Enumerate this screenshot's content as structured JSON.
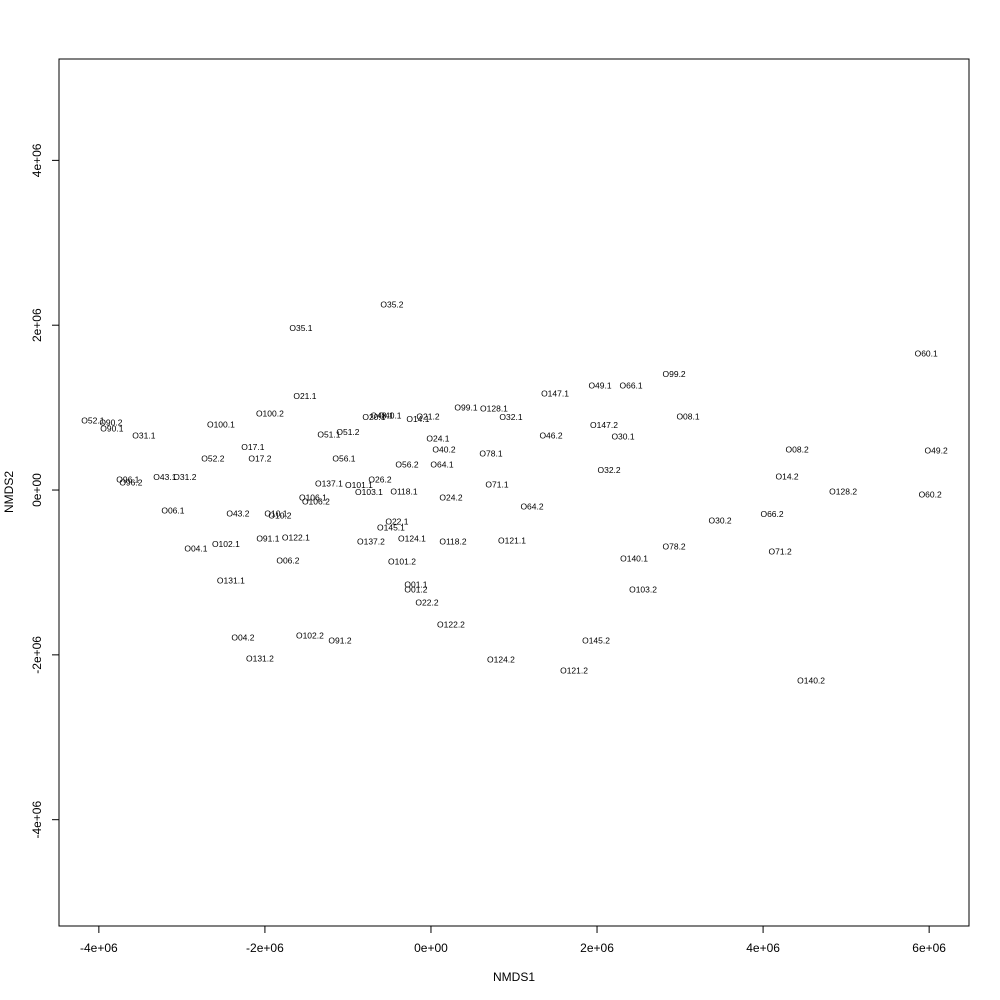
{
  "chart_data": {
    "type": "scatter",
    "xlabel": "NMDS1",
    "ylabel": "NMDS2",
    "xlim": [
      -4480000,
      6480000
    ],
    "ylim": [
      -5290000,
      5230000
    ],
    "xticks": [
      {
        "value": -4000000,
        "label": "-4e+06"
      },
      {
        "value": -2000000,
        "label": "-2e+06"
      },
      {
        "value": 0,
        "label": "0e+00"
      },
      {
        "value": 2000000,
        "label": "2e+06"
      },
      {
        "value": 4000000,
        "label": "4e+06"
      },
      {
        "value": 6000000,
        "label": "6e+06"
      }
    ],
    "yticks": [
      {
        "value": -4000000,
        "label": "-4e+06"
      },
      {
        "value": -2000000,
        "label": "-2e+06"
      },
      {
        "value": 0,
        "label": "0e+00"
      },
      {
        "value": 2000000,
        "label": "2e+06"
      },
      {
        "value": 4000000,
        "label": "4e+06"
      }
    ],
    "labels": [
      "O35.2",
      "O35.1",
      "O60.1",
      "O99.2",
      "O49.1",
      "O66.1",
      "O147.1",
      "O21.1",
      "O99.1",
      "O128.1",
      "O100.2",
      "O08.1",
      "O20.1",
      "O48.1",
      "O40.1",
      "O21.2",
      "O14.1",
      "O52.1",
      "O90.2",
      "O32.1",
      "O100.1",
      "O147.2",
      "O90.1",
      "O31.1",
      "O51.1",
      "O51.2",
      "O46.2",
      "O30.1",
      "O24.1",
      "O17.1",
      "O40.2",
      "O08.2",
      "O49.2",
      "O78.1",
      "O52.2",
      "O17.2",
      "O56.1",
      "O64.1",
      "O56.2",
      "O32.2",
      "O14.2",
      "O26.2",
      "O96.1",
      "O43.1",
      "O31.2",
      "O96.2",
      "O137.1",
      "O101.1",
      "O71.1",
      "O128.2",
      "O103.1",
      "O118.1",
      "O60.2",
      "O106.1",
      "O24.2",
      "O106.2",
      "O64.2",
      "O06.1",
      "O43.2",
      "O10.1",
      "O10.2",
      "O66.2",
      "O22.1",
      "O30.2",
      "O145.1",
      "O91.1",
      "O122.1",
      "O124.1",
      "O121.1",
      "O118.2",
      "O137.2",
      "O102.1",
      "O04.1",
      "O78.2",
      "O71.2",
      "O140.1",
      "O06.2",
      "O101.2",
      "O131.1",
      "O01.1",
      "O01.2",
      "O103.2",
      "O22.2",
      "O122.2",
      "O102.2",
      "O04.2",
      "O91.2",
      "O145.2",
      "O131.2",
      "O124.2",
      "O121.2",
      "O140.2"
    ],
    "x": [
      -470000,
      -1566000,
      5964000,
      2928000,
      2036000,
      2410000,
      1494000,
      -1518000,
      422000,
      759000,
      -1940000,
      3096000,
      -687000,
      -590000,
      -494000,
      -36000,
      -157000,
      -4072000,
      -3855000,
      964000,
      -2530000,
      2084000,
      -3843000,
      -3458000,
      -1229000,
      -1000000,
      1446000,
      2313000,
      84000,
      -2145000,
      157000,
      4410000,
      6084000,
      723000,
      -2627000,
      -2060000,
      -1048000,
      133000,
      -289000,
      2145000,
      4289000,
      -614000,
      -3651000,
      -3205000,
      -2964000,
      -3614000,
      -1229000,
      -867000,
      795000,
      4964000,
      -747000,
      -325000,
      6012000,
      -1422000,
      241000,
      -1386000,
      1217000,
      -3108000,
      -2325000,
      -1867000,
      -1819000,
      4108000,
      -410000,
      3482000,
      -482000,
      -1964000,
      -1627000,
      -229000,
      976000,
      265000,
      -723000,
      -2470000,
      -2831000,
      2928000,
      4205000,
      2446000,
      -1723000,
      -349000,
      -2410000,
      -181000,
      -181000,
      2554000,
      -48000,
      241000,
      -1458000,
      -2265000,
      -1096000,
      1988000,
      -2060000,
      843000,
      1723000,
      4578000
    ],
    "values": [
      2245000,
      1954000,
      1650000,
      1396000,
      1262000,
      1262000,
      1165000,
      1129000,
      995000,
      983000,
      922000,
      886000,
      874000,
      898000,
      898000,
      886000,
      850000,
      837000,
      813000,
      874000,
      789000,
      777000,
      740000,
      655000,
      667000,
      692000,
      655000,
      643000,
      619000,
      510000,
      485000,
      485000,
      473000,
      437000,
      376000,
      376000,
      376000,
      303000,
      303000,
      231000,
      158000,
      121000,
      121000,
      146000,
      146000,
      85000,
      73000,
      49000,
      61000,
      -24000,
      -36000,
      -24000,
      -61000,
      -97000,
      -97000,
      -146000,
      -206000,
      -255000,
      -291000,
      -291000,
      -316000,
      -303000,
      -388000,
      -376000,
      -461000,
      -595000,
      -583000,
      -595000,
      -619000,
      -631000,
      -631000,
      -667000,
      -716000,
      -692000,
      -752000,
      -837000,
      -862000,
      -874000,
      -1104000,
      -1153000,
      -1214000,
      -1214000,
      -1371000,
      -1638000,
      -1772000,
      -1796000,
      -1833000,
      -1833000,
      -2051000,
      -2063000,
      -2197000,
      -2318000
    ]
  }
}
